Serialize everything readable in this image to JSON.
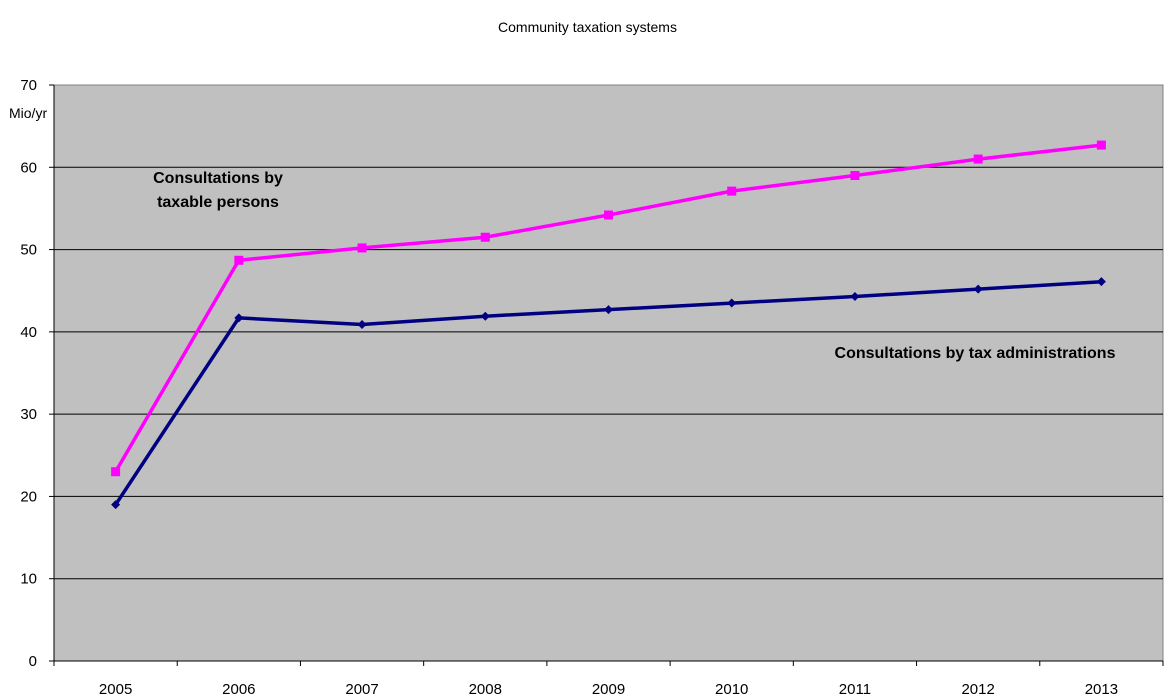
{
  "chart_data": {
    "type": "line",
    "title": "Community taxation systems",
    "y_unit_label": "Mio/yr",
    "categories": [
      "2005",
      "2006",
      "2007",
      "2008",
      "2009",
      "2010",
      "2011",
      "2012",
      "2013"
    ],
    "ylim": [
      0,
      70
    ],
    "y_ticks": [
      0,
      10,
      20,
      30,
      40,
      50,
      60,
      70
    ],
    "grid": "horizontal",
    "plot_background": "#c0c0c0",
    "series": [
      {
        "label": "Consultations by taxable persons",
        "label_lines": [
          "Consultations by",
          "taxable persons"
        ],
        "color": "#ff00ff",
        "marker": "square",
        "values": [
          23,
          48.7,
          50.2,
          51.5,
          54.2,
          57.1,
          59.0,
          61.0,
          62.7
        ]
      },
      {
        "label": "Consultations by tax administrations",
        "label_lines": [
          "Consultations by tax administrations"
        ],
        "color": "#000080",
        "marker": "diamond",
        "values": [
          19,
          41.7,
          40.9,
          41.9,
          42.7,
          43.5,
          44.3,
          45.2,
          46.1
        ]
      }
    ]
  }
}
